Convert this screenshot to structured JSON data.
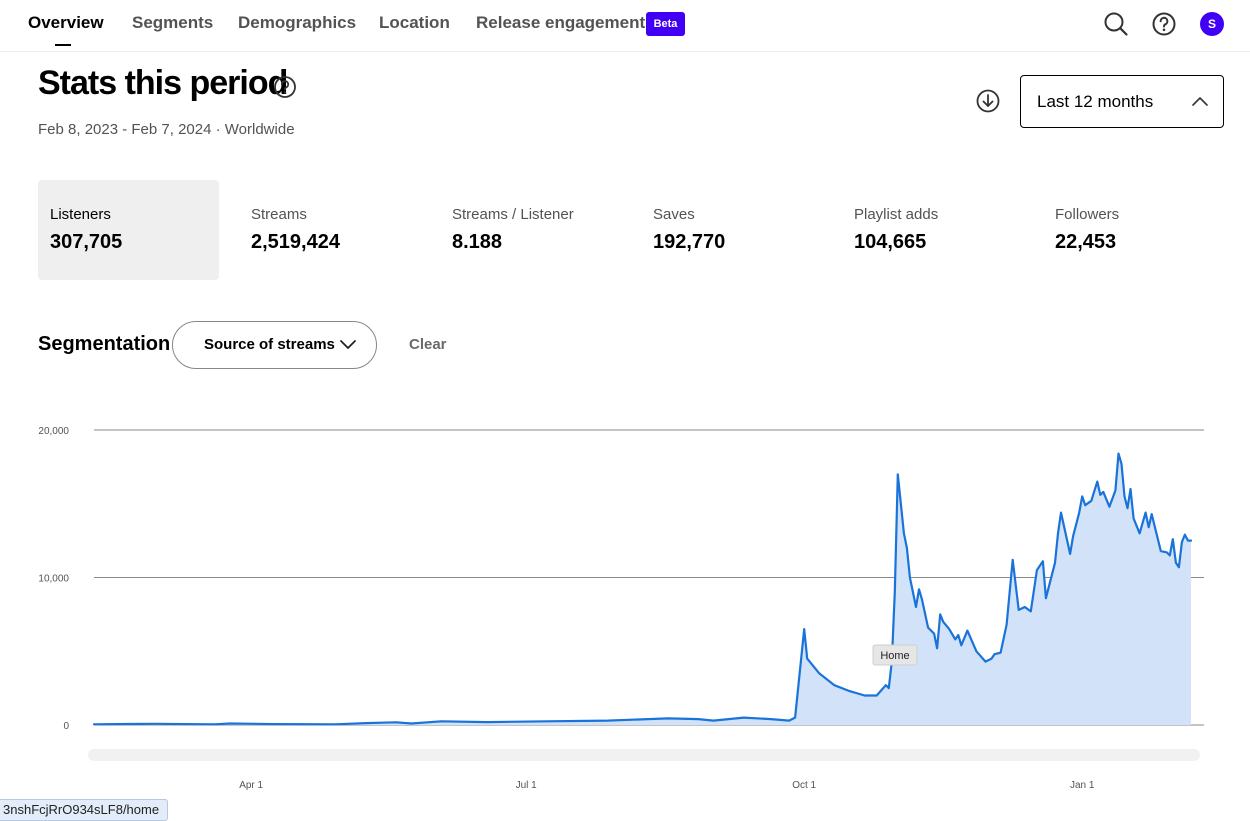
{
  "nav": {
    "tabs": [
      {
        "label": "Overview",
        "active": true
      },
      {
        "label": "Segments"
      },
      {
        "label": "Demographics"
      },
      {
        "label": "Location"
      },
      {
        "label": "Release engagement"
      }
    ],
    "beta_badge": "Beta",
    "icons": [
      "search-icon",
      "help-icon"
    ],
    "avatar_initial": "S"
  },
  "header": {
    "title": "Stats this period",
    "date_range": "Feb 8, 2023 - Feb 7, 2024 · Worldwide",
    "period_select": "Last 12 months"
  },
  "stats": [
    {
      "label": "Listeners",
      "value": "307,705",
      "selected": true
    },
    {
      "label": "Streams",
      "value": "2,519,424"
    },
    {
      "label": "Streams / Listener",
      "value": "8.188"
    },
    {
      "label": "Saves",
      "value": "192,770"
    },
    {
      "label": "Playlist adds",
      "value": "104,665"
    },
    {
      "label": "Followers",
      "value": "22,453"
    }
  ],
  "segmentation": {
    "title": "Segmentation",
    "select_label": "Source of streams",
    "clear_label": "Clear"
  },
  "colors": {
    "accent": "#4100f4",
    "line": "#1a73d9",
    "area": "#d2e3f9"
  },
  "chart_data": {
    "type": "area",
    "tooltip": "Home",
    "y_ticks": [
      {
        "value": 0,
        "label": "0"
      },
      {
        "value": 10000,
        "label": "10,000"
      },
      {
        "value": 20000,
        "label": "20,000"
      }
    ],
    "ylim": [
      0,
      20000
    ],
    "x_ticks": [
      {
        "day": 52,
        "label": "Apr 1"
      },
      {
        "day": 143,
        "label": "Jul 1"
      },
      {
        "day": 235,
        "label": "Oct 1"
      },
      {
        "day": 327,
        "label": "Jan 1"
      }
    ],
    "xlim": [
      0,
      364
    ],
    "grid": true,
    "x_day": [
      0,
      20,
      40,
      45,
      60,
      80,
      90,
      100,
      105,
      115,
      130,
      150,
      170,
      190,
      200,
      205,
      215,
      224,
      230,
      232,
      235,
      236,
      240,
      245,
      250,
      255,
      259,
      262,
      263,
      264,
      265,
      266,
      268,
      269,
      270,
      272,
      273,
      274,
      276,
      278,
      279,
      280,
      281,
      283,
      285,
      286,
      287,
      289,
      292,
      295,
      297,
      298,
      300,
      302,
      304,
      305,
      306,
      308,
      310,
      312,
      314,
      315,
      318,
      319,
      320,
      323,
      324,
      326,
      327,
      328,
      330,
      332,
      333,
      334,
      336,
      338,
      339,
      340,
      341,
      342,
      343,
      344,
      346,
      348,
      349,
      350,
      353,
      355,
      356,
      357,
      358,
      359,
      360,
      361,
      362,
      363
    ],
    "values": [
      50,
      80,
      50,
      100,
      60,
      50,
      130,
      180,
      100,
      250,
      200,
      250,
      300,
      450,
      400,
      300,
      500,
      400,
      300,
      500,
      6500,
      4500,
      3500,
      2700,
      2300,
      2000,
      2000,
      2700,
      2500,
      4300,
      9000,
      17000,
      13000,
      12000,
      10000,
      8000,
      9200,
      8500,
      6600,
      6200,
      5200,
      7500,
      7000,
      6500,
      5800,
      6100,
      5400,
      6400,
      5000,
      4300,
      4500,
      4800,
      4900,
      6800,
      11200,
      9500,
      7800,
      8000,
      7700,
      10500,
      11100,
      8600,
      11000,
      13000,
      14400,
      11600,
      12800,
      14400,
      15500,
      14900,
      15200,
      16500,
      15600,
      15800,
      14800,
      15900,
      18400,
      17700,
      15500,
      14700,
      16000,
      14000,
      13000,
      14400,
      13400,
      14300,
      11800,
      11700,
      11500,
      12600,
      11000,
      10700,
      12400,
      12900,
      12500,
      12500
    ]
  },
  "status_url": "3nshFcjRrO934sLF8/home"
}
